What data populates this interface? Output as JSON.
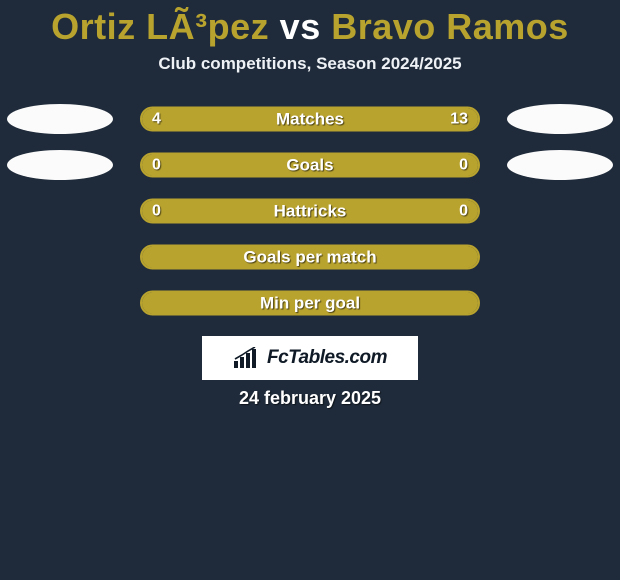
{
  "title": {
    "player_a": "Ortiz LÃ³pez",
    "vs": "vs",
    "player_b": "Bravo Ramos",
    "color_a": "#b9a32f",
    "color_vs": "#ffffff",
    "color_b": "#b9a32f"
  },
  "subtitle": "Club competitions, Season 2024/2025",
  "accent_a": "#b9a32f",
  "accent_b": "#b9a32f",
  "track_bg": "#1f2b3a",
  "badge_bg": "#fbfbfb",
  "rows": [
    {
      "label": "Matches",
      "left": "4",
      "right": "13",
      "fill_color": "#b9a32f",
      "fill_pct": 100,
      "show_left_badge": true,
      "show_right_badge": true,
      "show_values": true
    },
    {
      "label": "Goals",
      "left": "0",
      "right": "0",
      "fill_color": "#b9a32f",
      "fill_pct": 100,
      "show_left_badge": true,
      "show_right_badge": true,
      "show_values": true
    },
    {
      "label": "Hattricks",
      "left": "0",
      "right": "0",
      "fill_color": "#b9a32f",
      "fill_pct": 100,
      "show_left_badge": false,
      "show_right_badge": false,
      "show_values": true
    },
    {
      "label": "Goals per match",
      "left": "",
      "right": "",
      "fill_color": "#b9a32f",
      "fill_pct": 100,
      "show_left_badge": false,
      "show_right_badge": false,
      "show_values": false
    },
    {
      "label": "Min per goal",
      "left": "",
      "right": "",
      "fill_color": "#b9a32f",
      "fill_pct": 100,
      "show_left_badge": false,
      "show_right_badge": false,
      "show_values": false
    }
  ],
  "logo_text": "FcTables.com",
  "date": "24 february 2025"
}
